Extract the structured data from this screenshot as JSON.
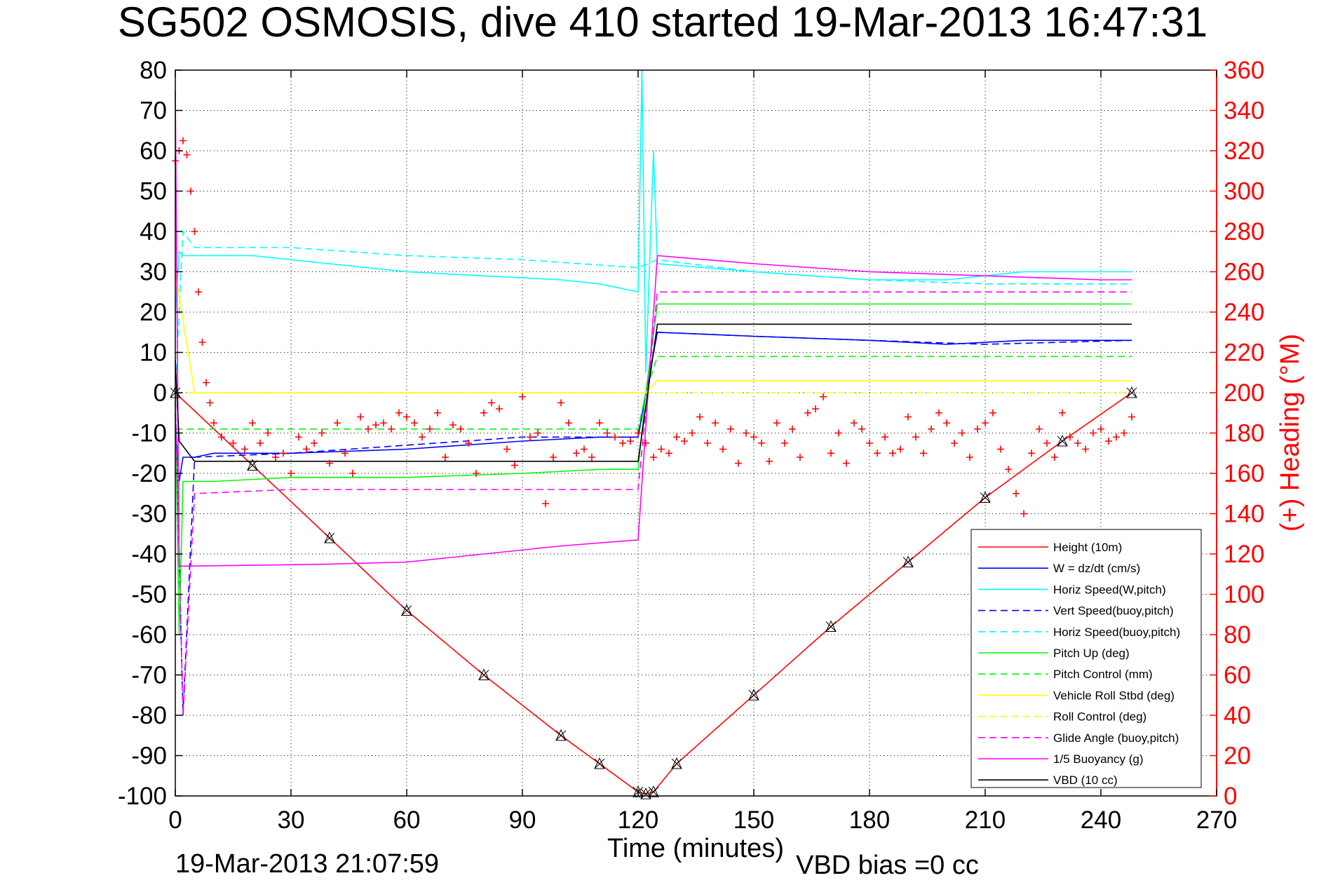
{
  "chart_data": {
    "type": "line",
    "title": "SG502 OSMOSIS, dive 410 started 19-Mar-2013 16:47:31",
    "xlabel": "Time (minutes)",
    "ylabel_right": "(+) Heading (°M)",
    "footer_left": "19-Mar-2013 21:07:59",
    "footer_center": "VBD bias =0 cc",
    "xlim": [
      0,
      270
    ],
    "ylim": [
      -100,
      80
    ],
    "ylim_right": [
      0,
      360
    ],
    "xticks": [
      "0",
      "30",
      "60",
      "90",
      "120",
      "150",
      "180",
      "210",
      "240",
      "270"
    ],
    "yticks": [
      "80",
      "70",
      "60",
      "50",
      "40",
      "30",
      "20",
      "10",
      "0",
      "-10",
      "-20",
      "-30",
      "-40",
      "-50",
      "-60",
      "-70",
      "-80",
      "-90",
      "-100"
    ],
    "yticks_right": [
      "360",
      "340",
      "320",
      "300",
      "280",
      "260",
      "240",
      "220",
      "200",
      "180",
      "160",
      "140",
      "120",
      "100",
      "80",
      "60",
      "40",
      "20",
      "0"
    ],
    "grid": true,
    "legend_position": "bottom-right",
    "series": [
      {
        "name": "Height (10m)",
        "color": "#ff0000",
        "style": "solid",
        "x": [
          0,
          20,
          40,
          60,
          80,
          100,
          110,
          120,
          122,
          124,
          130,
          150,
          170,
          190,
          210,
          230,
          248
        ],
        "y": [
          0,
          -18,
          -36,
          -54,
          -70,
          -85,
          -92,
          -99,
          -99.5,
          -99,
          -92,
          -75,
          -58,
          -42,
          -26,
          -12,
          0
        ]
      },
      {
        "name": "W = dz/dt (cm/s)",
        "color": "#0000ff",
        "style": "solid",
        "x": [
          0,
          1,
          2,
          5,
          10,
          30,
          60,
          90,
          110,
          120,
          122,
          125,
          150,
          180,
          200,
          220,
          240,
          248
        ],
        "y": [
          -8,
          -22,
          -16,
          -16,
          -15,
          -15,
          -14,
          -12,
          -11,
          -11,
          0,
          15,
          14,
          13,
          12,
          13,
          13,
          13
        ]
      },
      {
        "name": "Horiz Speed(W,pitch)",
        "color": "#00ffff",
        "style": "solid",
        "x": [
          0,
          1,
          2,
          5,
          20,
          30,
          50,
          60,
          80,
          100,
          110,
          120,
          121,
          122,
          124,
          125,
          150,
          180,
          200,
          220,
          240,
          248
        ],
        "y": [
          20,
          35,
          34,
          34,
          34,
          33,
          31,
          30,
          29,
          28,
          27,
          25,
          80,
          5,
          60,
          32,
          30,
          28,
          28,
          30,
          30,
          30
        ]
      },
      {
        "name": "Vert Speed(buoy,pitch)",
        "color": "#0000ff",
        "style": "dashed",
        "x": [
          0,
          2,
          5,
          30,
          60,
          90,
          120,
          125,
          150,
          180,
          210,
          248
        ],
        "y": [
          -2,
          -80,
          -16,
          -15,
          -13,
          -11,
          -11,
          15,
          14,
          13,
          12,
          13
        ]
      },
      {
        "name": "Horiz Speed(buoy,pitch)",
        "color": "#00ffff",
        "style": "dashed",
        "x": [
          0,
          2,
          5,
          30,
          60,
          90,
          120,
          125,
          150,
          180,
          210,
          248
        ],
        "y": [
          0,
          40,
          36,
          36,
          34,
          33,
          31,
          33,
          30,
          28,
          27,
          27
        ]
      },
      {
        "name": "Pitch Up (deg)",
        "color": "#00ff00",
        "style": "solid",
        "x": [
          0,
          1,
          2,
          5,
          10,
          30,
          60,
          90,
          110,
          120,
          122,
          125,
          150,
          180,
          200,
          220,
          240,
          248
        ],
        "y": [
          -5,
          -60,
          -22,
          -22,
          -22,
          -21,
          -21,
          -20,
          -19,
          -19,
          0,
          22,
          22,
          22,
          22,
          22,
          22,
          22
        ]
      },
      {
        "name": "Pitch Control (mm)",
        "color": "#00ff00",
        "style": "dashed",
        "x": [
          0,
          5,
          120,
          122,
          125,
          248
        ],
        "y": [
          -9,
          -9,
          -9,
          0,
          9,
          9
        ]
      },
      {
        "name": "Vehicle Roll Stbd (deg)",
        "color": "#ffff00",
        "style": "solid",
        "x": [
          0,
          5,
          20,
          40,
          60,
          80,
          100,
          120,
          122,
          125,
          150,
          180,
          210,
          240,
          248
        ],
        "y": [
          30,
          0,
          0,
          0,
          0,
          0,
          0,
          0,
          0,
          3,
          3,
          3,
          3,
          3,
          3
        ]
      },
      {
        "name": "Roll Control (deg)",
        "color": "#ffff00",
        "style": "dashed",
        "x": [
          0,
          5,
          120,
          122,
          125,
          248
        ],
        "y": [
          0,
          0,
          0,
          0,
          0,
          0
        ]
      },
      {
        "name": "Glide Angle (buoy,pitch)",
        "color": "#ff00ff",
        "style": "dashed",
        "x": [
          0,
          2,
          5,
          30,
          60,
          90,
          120,
          125,
          150,
          180,
          210,
          248
        ],
        "y": [
          0,
          -80,
          -25,
          -24,
          -24,
          -24,
          -24,
          25,
          25,
          25,
          25,
          25
        ]
      },
      {
        "name": "1/5 Buoyancy (g)",
        "color": "#ff00ff",
        "style": "solid",
        "x": [
          0,
          1,
          2,
          20,
          40,
          60,
          80,
          100,
          120,
          125,
          150,
          180,
          210,
          240,
          248
        ],
        "y": [
          75,
          -43,
          -43,
          -42.8,
          -42.5,
          -42,
          -40,
          -38,
          -36.5,
          34,
          32,
          30,
          29,
          28,
          28
        ]
      },
      {
        "name": "VBD (10 cc)",
        "color": "#000000",
        "style": "solid",
        "x": [
          0,
          1,
          5,
          10,
          30,
          60,
          90,
          120,
          125,
          248
        ],
        "y": [
          8,
          -12,
          -17,
          -17,
          -17,
          -17,
          -17,
          -17,
          17,
          17
        ]
      }
    ],
    "series_right": [
      {
        "name": "Heading",
        "color": "#ff0000",
        "marker": "+",
        "x": [
          0,
          1,
          2,
          3,
          4,
          5,
          6,
          7,
          8,
          9,
          10,
          12,
          15,
          18,
          20,
          22,
          24,
          26,
          28,
          30,
          32,
          34,
          36,
          38,
          40,
          42,
          44,
          46,
          48,
          50,
          52,
          54,
          56,
          58,
          60,
          62,
          64,
          66,
          68,
          70,
          72,
          74,
          76,
          78,
          80,
          82,
          84,
          86,
          88,
          90,
          92,
          94,
          96,
          98,
          100,
          102,
          104,
          106,
          108,
          110,
          112,
          114,
          116,
          118,
          120,
          122,
          124,
          126,
          128,
          130,
          132,
          134,
          136,
          138,
          140,
          142,
          144,
          146,
          148,
          150,
          152,
          154,
          156,
          158,
          160,
          162,
          164,
          166,
          168,
          170,
          172,
          174,
          176,
          178,
          180,
          182,
          184,
          186,
          188,
          190,
          192,
          194,
          196,
          198,
          200,
          202,
          204,
          206,
          208,
          210,
          212,
          214,
          216,
          218,
          220,
          222,
          224,
          226,
          228,
          230,
          232,
          234,
          236,
          238,
          240,
          242,
          244,
          246,
          248
        ],
        "y": [
          315,
          320,
          325,
          318,
          300,
          280,
          250,
          225,
          205,
          195,
          185,
          178,
          175,
          172,
          185,
          175,
          180,
          168,
          170,
          160,
          178,
          172,
          175,
          180,
          165,
          185,
          170,
          160,
          188,
          182,
          184,
          185,
          182,
          190,
          188,
          185,
          178,
          182,
          190,
          168,
          184,
          182,
          175,
          160,
          190,
          195,
          192,
          172,
          164,
          198,
          178,
          180,
          145,
          168,
          195,
          185,
          170,
          172,
          168,
          185,
          180,
          178,
          175,
          176,
          180,
          175,
          168,
          172,
          170,
          178,
          176,
          180,
          188,
          175,
          185,
          172,
          182,
          165,
          180,
          178,
          175,
          166,
          185,
          175,
          182,
          168,
          190,
          192,
          198,
          170,
          180,
          165,
          185,
          182,
          175,
          170,
          178,
          170,
          172,
          188,
          178,
          170,
          182,
          190,
          185,
          175,
          180,
          168,
          182,
          185,
          190,
          172,
          162,
          150,
          140,
          170,
          182,
          175,
          168,
          190,
          178,
          175,
          172,
          180,
          182,
          176,
          178,
          180,
          188
        ]
      }
    ]
  }
}
